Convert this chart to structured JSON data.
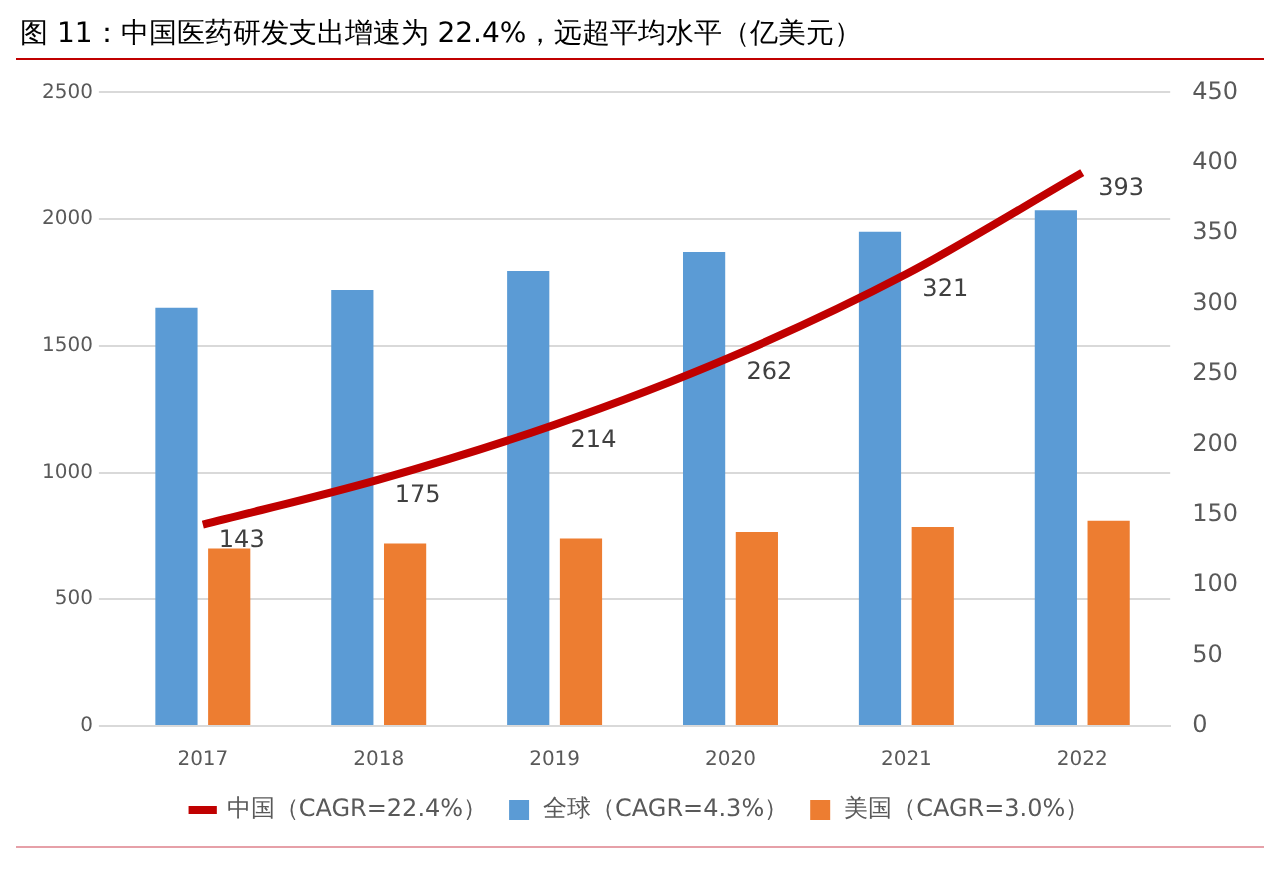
{
  "chart_data": {
    "type": "bar",
    "title": "图 11：中国医药研发支出增速为 22.4%，远超平均水平（亿美元）",
    "categories": [
      "2017",
      "2018",
      "2019",
      "2020",
      "2021",
      "2022"
    ],
    "series": [
      {
        "name": "全球（CAGR=4.3%）",
        "color": "#5b9bd5",
        "values": [
          1650,
          1720,
          1795,
          1870,
          1950,
          2035
        ]
      },
      {
        "name": "美国（CAGR=3.0%）",
        "color": "#ed7d31",
        "values": [
          700,
          720,
          740,
          765,
          785,
          810
        ]
      },
      {
        "name": "中国（CAGR=22.4%）",
        "type": "line",
        "axis": "y2",
        "color": "#c00000",
        "values": [
          143,
          175,
          214,
          262,
          321,
          393
        ],
        "value_labels": [
          "143",
          "175",
          "214",
          "262",
          "321",
          "393"
        ]
      }
    ],
    "ylim": [
      0,
      2500
    ],
    "yticks": [
      0,
      500,
      1000,
      1500,
      2000,
      2500
    ],
    "y2lim": [
      0,
      450
    ],
    "y2ticks": [
      0,
      50,
      100,
      150,
      200,
      250,
      300,
      350,
      400,
      450
    ],
    "grid": "y",
    "legend": "bottom",
    "marker": "none"
  }
}
